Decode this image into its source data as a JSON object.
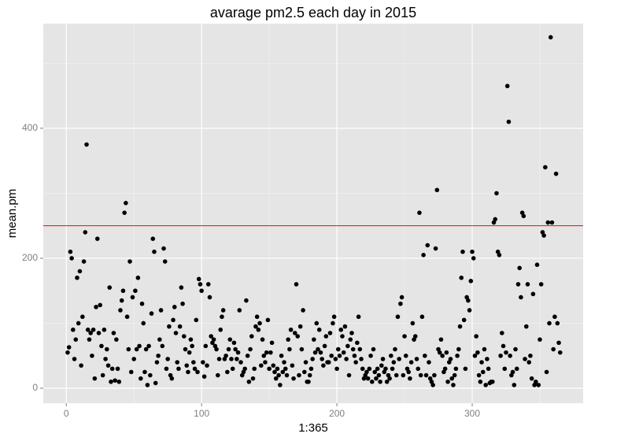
{
  "chart_data": {
    "type": "scatter",
    "title": "avarage pm2.5 each day in 2015",
    "x_label": "1:365",
    "y_label": "mean.pm",
    "xlim": [
      -17,
      382
    ],
    "ylim": [
      -23,
      561
    ],
    "xticks": [
      0,
      100,
      200,
      300
    ],
    "yticks": [
      0,
      200,
      400
    ],
    "x_minor_grid": [
      50,
      150,
      250,
      350
    ],
    "y_minor_grid": [
      100,
      300,
      500
    ],
    "grid": true,
    "hline": {
      "value": 250,
      "color": "#ff0000"
    },
    "color": "#000000",
    "x": [
      1,
      2,
      3,
      4,
      5,
      6,
      7,
      8,
      9,
      10,
      11,
      12,
      13,
      14,
      15,
      16,
      17,
      18,
      19,
      20,
      21,
      22,
      23,
      24,
      25,
      26,
      27,
      28,
      29,
      30,
      31,
      32,
      33,
      34,
      35,
      36,
      37,
      38,
      39,
      40,
      41,
      42,
      43,
      44,
      45,
      46,
      47,
      48,
      49,
      50,
      51,
      52,
      53,
      54,
      55,
      56,
      57,
      58,
      59,
      60,
      61,
      62,
      63,
      64,
      65,
      66,
      67,
      68,
      69,
      70,
      71,
      72,
      73,
      74,
      75,
      76,
      77,
      78,
      79,
      80,
      81,
      82,
      83,
      84,
      85,
      86,
      87,
      88,
      89,
      90,
      91,
      92,
      93,
      94,
      95,
      96,
      97,
      98,
      99,
      100,
      101,
      102,
      103,
      104,
      105,
      106,
      107,
      108,
      109,
      110,
      111,
      112,
      113,
      114,
      115,
      116,
      117,
      118,
      119,
      120,
      121,
      122,
      123,
      124,
      125,
      126,
      127,
      128,
      129,
      130,
      131,
      132,
      133,
      134,
      135,
      136,
      137,
      138,
      139,
      140,
      141,
      142,
      143,
      144,
      145,
      146,
      147,
      148,
      149,
      150,
      151,
      152,
      153,
      154,
      155,
      156,
      157,
      158,
      159,
      160,
      161,
      162,
      163,
      164,
      165,
      166,
      167,
      168,
      169,
      170,
      171,
      172,
      173,
      174,
      175,
      176,
      177,
      178,
      179,
      180,
      181,
      182,
      183,
      184,
      185,
      186,
      187,
      188,
      189,
      190,
      191,
      192,
      193,
      194,
      195,
      196,
      197,
      198,
      199,
      200,
      201,
      202,
      203,
      204,
      205,
      206,
      207,
      208,
      209,
      210,
      211,
      212,
      213,
      214,
      215,
      216,
      217,
      218,
      219,
      220,
      221,
      222,
      223,
      224,
      225,
      226,
      227,
      228,
      229,
      230,
      231,
      232,
      233,
      234,
      235,
      236,
      237,
      238,
      239,
      240,
      241,
      242,
      243,
      244,
      245,
      246,
      247,
      248,
      249,
      250,
      251,
      252,
      253,
      254,
      255,
      256,
      257,
      258,
      259,
      260,
      261,
      262,
      263,
      264,
      265,
      266,
      267,
      268,
      269,
      270,
      271,
      272,
      273,
      274,
      275,
      276,
      277,
      278,
      279,
      280,
      281,
      282,
      283,
      284,
      285,
      286,
      287,
      288,
      289,
      290,
      291,
      292,
      293,
      294,
      295,
      296,
      297,
      298,
      299,
      300,
      301,
      302,
      303,
      304,
      305,
      306,
      307,
      308,
      309,
      310,
      311,
      312,
      313,
      314,
      315,
      316,
      317,
      318,
      319,
      320,
      321,
      322,
      323,
      324,
      325,
      326,
      327,
      328,
      329,
      330,
      331,
      332,
      333,
      334,
      335,
      336,
      337,
      338,
      339,
      340,
      341,
      342,
      343,
      344,
      345,
      346,
      347,
      348,
      349,
      350,
      351,
      352,
      353,
      354,
      355,
      356,
      357,
      358,
      359,
      360,
      361,
      362,
      363,
      364,
      365
    ],
    "values": [
      55,
      63,
      210,
      200,
      90,
      45,
      75,
      170,
      100,
      180,
      35,
      110,
      195,
      240,
      375,
      90,
      75,
      85,
      50,
      90,
      15,
      125,
      230,
      85,
      128,
      65,
      20,
      90,
      45,
      60,
      35,
      155,
      10,
      30,
      85,
      12,
      75,
      30,
      10,
      120,
      135,
      150,
      270,
      285,
      110,
      60,
      195,
      25,
      140,
      45,
      150,
      60,
      170,
      65,
      15,
      130,
      100,
      25,
      60,
      5,
      65,
      20,
      115,
      230,
      210,
      8,
      40,
      50,
      75,
      120,
      65,
      215,
      195,
      30,
      45,
      95,
      20,
      15,
      105,
      125,
      85,
      40,
      30,
      95,
      155,
      130,
      80,
      60,
      35,
      25,
      55,
      75,
      65,
      40,
      30,
      105,
      25,
      168,
      160,
      150,
      40,
      18,
      65,
      35,
      160,
      140,
      80,
      70,
      75,
      65,
      60,
      20,
      45,
      90,
      110,
      120,
      45,
      50,
      25,
      60,
      75,
      45,
      30,
      70,
      60,
      45,
      55,
      120,
      40,
      20,
      25,
      30,
      135,
      50,
      10,
      60,
      80,
      15,
      30,
      95,
      110,
      90,
      100,
      35,
      75,
      50,
      40,
      55,
      105,
      30,
      55,
      70,
      35,
      25,
      15,
      30,
      20,
      5,
      50,
      25,
      40,
      30,
      20,
      75,
      60,
      90,
      35,
      15,
      85,
      160,
      80,
      20,
      95,
      60,
      120,
      25,
      40,
      10,
      10,
      20,
      30,
      45,
      75,
      55,
      100,
      60,
      90,
      55,
      45,
      35,
      65,
      80,
      40,
      40,
      85,
      50,
      100,
      110,
      45,
      30,
      60,
      50,
      90,
      80,
      55,
      95,
      45,
      65,
      20,
      75,
      85,
      60,
      50,
      40,
      70,
      110,
      60,
      45,
      30,
      15,
      20,
      25,
      15,
      30,
      50,
      10,
      60,
      25,
      15,
      30,
      20,
      10,
      35,
      45,
      25,
      30,
      10,
      20,
      15,
      50,
      30,
      40,
      60,
      20,
      110,
      45,
      130,
      140,
      20,
      80,
      50,
      30,
      25,
      15,
      40,
      100,
      75,
      80,
      45,
      30,
      270,
      20,
      110,
      205,
      50,
      20,
      220,
      40,
      15,
      10,
      5,
      20,
      215,
      305,
      60,
      55,
      75,
      50,
      25,
      30,
      55,
      10,
      40,
      45,
      15,
      5,
      20,
      30,
      50,
      60,
      95,
      170,
      210,
      105,
      30,
      140,
      135,
      120,
      165,
      210,
      200,
      50,
      80,
      55,
      20,
      10,
      40,
      25,
      60,
      5,
      45,
      30,
      8,
      10,
      10,
      255,
      260,
      300,
      210,
      205,
      50,
      85,
      65,
      30,
      55,
      465,
      410,
      50,
      20,
      25,
      5,
      60,
      30,
      160,
      185,
      140,
      270,
      265,
      45,
      95,
      160,
      40,
      50,
      15,
      145,
      5,
      10,
      190,
      5,
      75,
      160,
      240,
      235,
      340,
      25,
      255,
      100,
      540,
      255,
      60,
      110,
      330,
      100,
      70,
      55
    ]
  }
}
